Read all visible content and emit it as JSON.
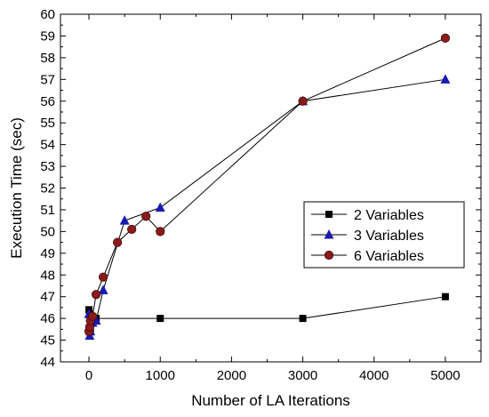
{
  "chart_data": {
    "type": "line",
    "title": "",
    "xlabel": "Number of LA Iterations",
    "ylabel": "Execution Time (sec)",
    "xlim": [
      -400,
      5500
    ],
    "ylim": [
      44,
      60
    ],
    "x_ticks": [
      0,
      1000,
      2000,
      3000,
      4000,
      5000
    ],
    "y_ticks": [
      44,
      45,
      46,
      47,
      48,
      49,
      50,
      51,
      52,
      53,
      54,
      55,
      56,
      57,
      58,
      59,
      60
    ],
    "grid": false,
    "legend_position": "middle-right",
    "series": [
      {
        "name": "2 Variables",
        "marker": "square",
        "color": "#000000",
        "points": [
          [
            0,
            46.4
          ],
          [
            10,
            46.2
          ],
          [
            20,
            45.5
          ],
          [
            50,
            45.9
          ],
          [
            100,
            46.0
          ],
          [
            1000,
            46.0
          ],
          [
            3000,
            46.0
          ],
          [
            5000,
            47.0
          ]
        ]
      },
      {
        "name": "3 Variables",
        "marker": "triangle",
        "color": "#1a1ab3",
        "points": [
          [
            0,
            46.2
          ],
          [
            10,
            45.2
          ],
          [
            20,
            45.4
          ],
          [
            50,
            45.8
          ],
          [
            100,
            45.9
          ],
          [
            200,
            47.3
          ],
          [
            500,
            50.5
          ],
          [
            1000,
            51.1
          ],
          [
            3000,
            56.0
          ],
          [
            5000,
            57.0
          ]
        ]
      },
      {
        "name": "6 Variables",
        "marker": "circle",
        "color": "#8b1a1a",
        "points": [
          [
            0,
            45.4
          ],
          [
            10,
            45.6
          ],
          [
            20,
            45.9
          ],
          [
            50,
            46.1
          ],
          [
            100,
            47.1
          ],
          [
            200,
            47.9
          ],
          [
            400,
            49.5
          ],
          [
            600,
            50.1
          ],
          [
            800,
            50.7
          ],
          [
            1000,
            50.0
          ],
          [
            3000,
            56.0
          ],
          [
            5000,
            58.9
          ]
        ]
      }
    ]
  }
}
